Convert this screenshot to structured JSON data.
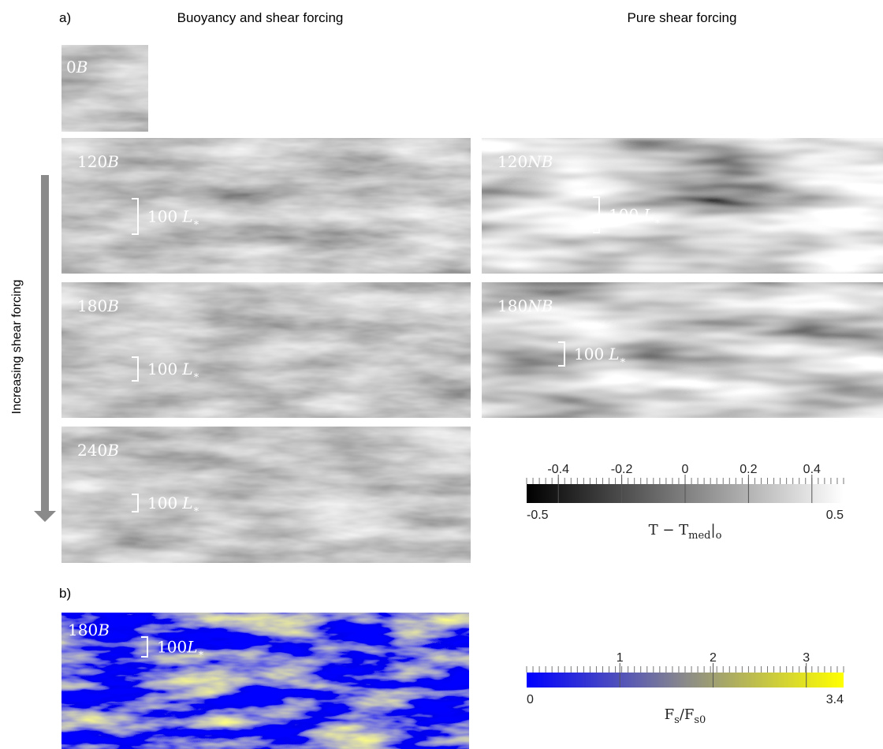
{
  "panel_a": {
    "label": "a)",
    "column_titles": [
      "Buoyancy and shear forcing",
      "Pure shear forcing"
    ],
    "arrow_label": "Increasing shear forcing",
    "snapshots": [
      {
        "number": "0",
        "case": "B"
      },
      {
        "number": "120",
        "case": "B",
        "scale": {
          "number": "100",
          "symbol": "L",
          "sub": "∗"
        }
      },
      {
        "number": "180",
        "case": "B",
        "scale": {
          "number": "100",
          "symbol": "L",
          "sub": "∗"
        }
      },
      {
        "number": "240",
        "case": "B",
        "scale": {
          "number": "100",
          "symbol": "L",
          "sub": "∗"
        }
      },
      {
        "number": "120",
        "case": "NB",
        "scale": {
          "number": "100",
          "symbol": "L",
          "sub": "∗"
        }
      },
      {
        "number": "180",
        "case": "NB",
        "scale": {
          "number": "100",
          "symbol": "L",
          "sub": "∗"
        }
      }
    ],
    "colorbar": {
      "ticks": [
        -0.4,
        -0.2,
        0,
        0.2,
        0.4
      ],
      "lim": [
        -0.5,
        0.5
      ],
      "label": {
        "main": "T − T",
        "sub": "med",
        "tail": "|",
        "tail_sub": "o"
      }
    }
  },
  "panel_b": {
    "label": "b)",
    "snapshot": {
      "number": "180",
      "case": "B",
      "scale": {
        "number": "100",
        "symbol": "L",
        "sub": "∗"
      }
    },
    "colorbar": {
      "ticks": [
        1,
        2,
        3
      ],
      "lim": [
        0,
        3.4
      ],
      "label": {
        "main": "F",
        "sub": "s",
        "tail": "/F",
        "tail_sub": "s0"
      }
    }
  }
}
